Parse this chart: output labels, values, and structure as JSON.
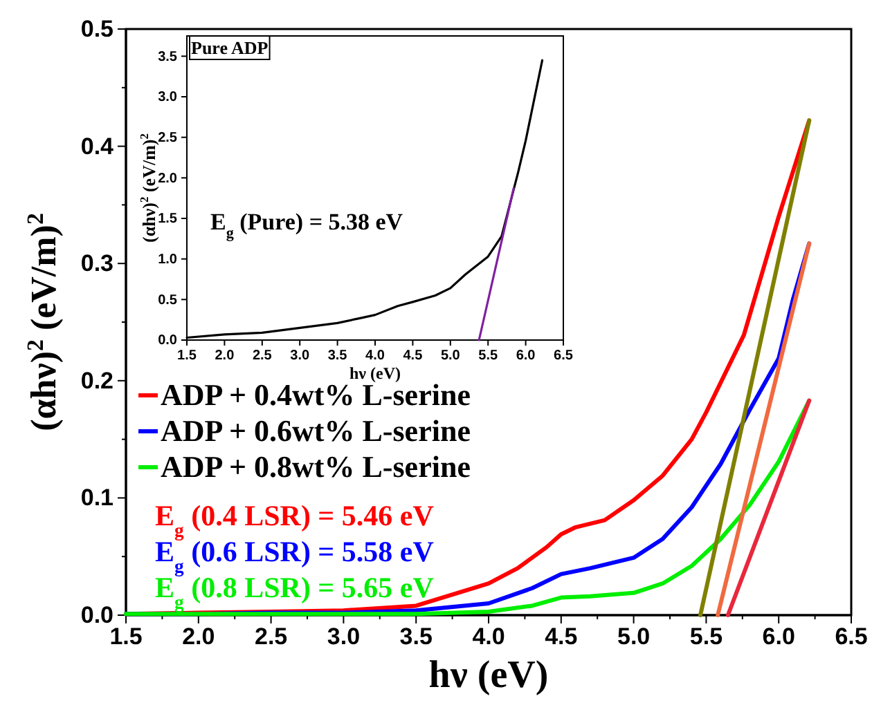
{
  "chart_data": [
    {
      "type": "line",
      "xlabel": "hν (eV)",
      "ylabel": "(αhν)$^{2}$ (eV/m)$^{2}$",
      "xlim": [
        1.5,
        6.5
      ],
      "ylim": [
        0,
        0.5
      ],
      "xticks": [
        1.5,
        {
          "value": 1.75,
          "label": null
        },
        {
          "value": 2,
          "label": "2.0"
        },
        {
          "value": 2.25,
          "label": null
        },
        2.5,
        {
          "value": 2.75,
          "label": null
        },
        {
          "value": 3,
          "label": "3.0"
        },
        {
          "value": 3.25,
          "label": null
        },
        3.5,
        {
          "value": 3.75,
          "label": null
        },
        {
          "value": 4,
          "label": "4.0"
        },
        {
          "value": 4.25,
          "label": null
        },
        4.5,
        {
          "value": 4.75,
          "label": null
        },
        {
          "value": 5,
          "label": "5.0"
        },
        {
          "value": 5.25,
          "label": null
        },
        5.5,
        {
          "value": 5.75,
          "label": null
        },
        {
          "value": 6,
          "label": "6.0"
        },
        {
          "value": 6.25,
          "label": null
        },
        6.5
      ],
      "yticks": [
        {
          "value": 0,
          "label": "0.0"
        },
        {
          "value": 0.05,
          "label": null
        },
        0.1,
        {
          "value": 0.15,
          "label": null
        },
        0.2,
        {
          "value": 0.25,
          "label": null
        },
        0.3,
        {
          "value": 0.35,
          "label": null
        },
        0.4,
        {
          "value": 0.45,
          "label": null
        },
        0.5
      ],
      "marker": "none",
      "grid": false,
      "legend": "left",
      "series": [
        {
          "name": "ADP + 0.4wt% L-serine",
          "color": "#ff0000",
          "x": [
            1.5,
            2.0,
            2.5,
            3.0,
            3.5,
            4.0,
            4.2,
            4.4,
            4.5,
            4.6,
            4.8,
            5.0,
            5.2,
            5.4,
            5.5,
            5.76,
            6.0,
            6.21
          ],
          "values": [
            0.001,
            0.002,
            0.003,
            0.004,
            0.008,
            0.027,
            0.04,
            0.058,
            0.069,
            0.075,
            0.081,
            0.098,
            0.119,
            0.15,
            0.173,
            0.239,
            0.34,
            0.422
          ]
        },
        {
          "name": "ADP + 0.6wt% L-serine",
          "color": "#0000ff",
          "x": [
            1.5,
            2.0,
            2.5,
            3.0,
            3.5,
            4.0,
            4.3,
            4.5,
            4.7,
            5.0,
            5.2,
            5.4,
            5.6,
            5.8,
            6.0,
            6.1,
            6.21
          ],
          "values": [
            0.001,
            0.001,
            0.002,
            0.002,
            0.004,
            0.01,
            0.023,
            0.035,
            0.04,
            0.049,
            0.065,
            0.092,
            0.129,
            0.175,
            0.219,
            0.27,
            0.317
          ]
        },
        {
          "name": "ADP + 0.8wt% L-serine",
          "color": "#00ee00",
          "x": [
            1.5,
            2.0,
            2.5,
            3.0,
            3.5,
            4.0,
            4.3,
            4.5,
            4.7,
            5.0,
            5.2,
            5.4,
            5.6,
            5.8,
            6.0,
            6.21
          ],
          "values": [
            0.001,
            0.001,
            0.001,
            0.001,
            0.001,
            0.003,
            0.008,
            0.015,
            0.016,
            0.019,
            0.027,
            0.042,
            0.065,
            0.094,
            0.131,
            0.183
          ]
        },
        {
          "type": "line",
          "color": "#808000",
          "x": [
            5.46,
            6.21
          ],
          "values": [
            0,
            0.422
          ]
        },
        {
          "type": "line",
          "color": "#f06a40",
          "x": [
            5.58,
            6.21
          ],
          "values": [
            0,
            0.317
          ]
        },
        {
          "type": "line",
          "color": "#e8283c",
          "x": [
            5.65,
            6.21
          ],
          "values": [
            0,
            0.183
          ]
        }
      ],
      "annotations": [
        "E$_{g}$ (0.4 LSR) = 5.46 eV",
        "E$_{g}$ (0.6 LSR) = 5.58 eV",
        "E$_{g}$ (0.8 LSR) = 5.65 eV"
      ]
    },
    {
      "type": "line",
      "title": "Pure ADP",
      "xlabel": "hν (eV)",
      "ylabel": "(αhν)$^{2}$ (eV/m)$^{2}$",
      "xlim": [
        1.5,
        6.5
      ],
      "ylim": [
        0,
        3.75
      ],
      "xticks": [
        1.5,
        {
          "value": 2,
          "label": "2.0"
        },
        2.5,
        {
          "value": 3,
          "label": "3.0"
        },
        3.5,
        {
          "value": 4,
          "label": "4.0"
        },
        4.5,
        {
          "value": 5,
          "label": "5.0"
        },
        5.5,
        {
          "value": 6,
          "label": "6.0"
        },
        6.5
      ],
      "yticks": [
        {
          "value": 0,
          "label": "0.0"
        },
        0.5,
        {
          "value": 1,
          "label": "1.0"
        },
        1.5,
        {
          "value": 2,
          "label": "2.0"
        },
        2.5,
        {
          "value": 3,
          "label": "3.0"
        },
        3.5
      ],
      "marker": "none",
      "grid": false,
      "series": [
        {
          "color": "#000000",
          "x": [
            1.5,
            2.0,
            2.5,
            3.0,
            3.5,
            3.8,
            4.0,
            4.3,
            4.5,
            4.8,
            5.0,
            5.2,
            5.5,
            5.68,
            5.9,
            6.0,
            6.22
          ],
          "values": [
            0.03,
            0.07,
            0.09,
            0.15,
            0.21,
            0.27,
            0.31,
            0.42,
            0.47,
            0.55,
            0.64,
            0.81,
            1.03,
            1.28,
            2.07,
            2.46,
            3.45
          ]
        },
        {
          "type": "line",
          "color": "#8020a0",
          "x": [
            5.38,
            5.84
          ],
          "values": [
            0,
            1.87
          ]
        }
      ],
      "annotations": [
        "E$_{g}$ (Pure) = 5.38 eV"
      ]
    }
  ]
}
